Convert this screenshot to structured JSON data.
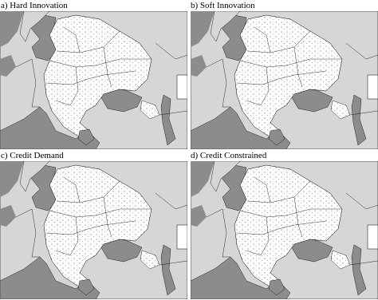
{
  "panels": [
    {
      "label": "a) Hard Innovation"
    },
    {
      "label": "b) Soft Innovation"
    },
    {
      "label": "c) Credit Demand"
    },
    {
      "label": "d) Credit Constrained"
    }
  ]
}
